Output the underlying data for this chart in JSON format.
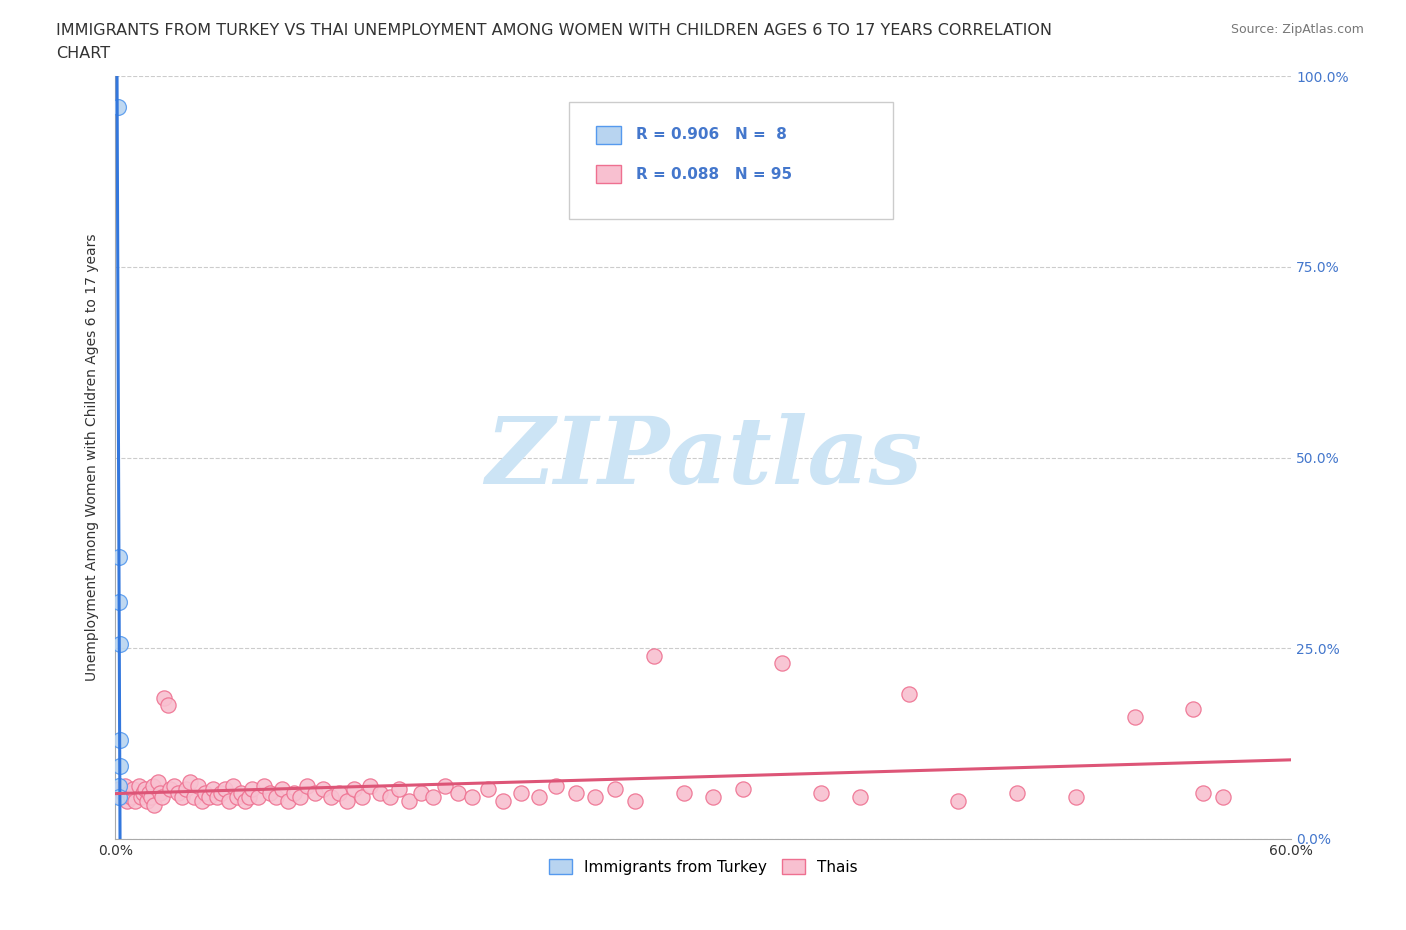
{
  "title_line1": "IMMIGRANTS FROM TURKEY VS THAI UNEMPLOYMENT AMONG WOMEN WITH CHILDREN AGES 6 TO 17 YEARS CORRELATION",
  "title_line2": "CHART",
  "source": "Source: ZipAtlas.com",
  "ylabel": "Unemployment Among Women with Children Ages 6 to 17 years",
  "xlim": [
    0.0,
    0.6
  ],
  "ylim": [
    0.0,
    1.0
  ],
  "xticks": [
    0.0,
    0.6
  ],
  "xticklabels": [
    "0.0%",
    "60.0%"
  ],
  "yticks": [
    0.0,
    0.25,
    0.5,
    0.75,
    1.0
  ],
  "right_yticklabels": [
    "0.0%",
    "25.0%",
    "50.0%",
    "75.0%",
    "100.0%"
  ],
  "blue_R": 0.906,
  "blue_N": 8,
  "pink_R": 0.088,
  "pink_N": 95,
  "legend_label_blue": "Immigrants from Turkey",
  "legend_label_pink": "Thais",
  "blue_scatter_color": "#b8d4f0",
  "blue_edge_color": "#5599ee",
  "pink_scatter_color": "#f8c0d0",
  "pink_edge_color": "#ee7090",
  "blue_line_color": "#3377dd",
  "pink_line_color": "#dd5577",
  "blue_scatter_x": [
    0.0015,
    0.0018,
    0.002,
    0.0022,
    0.0025,
    0.0022,
    0.002,
    0.0018
  ],
  "blue_scatter_y": [
    0.96,
    0.37,
    0.31,
    0.255,
    0.13,
    0.095,
    0.07,
    0.055
  ],
  "pink_scatter_x": [
    0.002,
    0.003,
    0.004,
    0.005,
    0.006,
    0.007,
    0.008,
    0.009,
    0.01,
    0.012,
    0.013,
    0.014,
    0.015,
    0.016,
    0.017,
    0.018,
    0.019,
    0.02,
    0.022,
    0.023,
    0.024,
    0.025,
    0.027,
    0.028,
    0.03,
    0.032,
    0.034,
    0.036,
    0.038,
    0.04,
    0.042,
    0.044,
    0.046,
    0.048,
    0.05,
    0.052,
    0.054,
    0.056,
    0.058,
    0.06,
    0.062,
    0.064,
    0.066,
    0.068,
    0.07,
    0.073,
    0.076,
    0.079,
    0.082,
    0.085,
    0.088,
    0.091,
    0.094,
    0.098,
    0.102,
    0.106,
    0.11,
    0.114,
    0.118,
    0.122,
    0.126,
    0.13,
    0.135,
    0.14,
    0.145,
    0.15,
    0.156,
    0.162,
    0.168,
    0.175,
    0.182,
    0.19,
    0.198,
    0.207,
    0.216,
    0.225,
    0.235,
    0.245,
    0.255,
    0.265,
    0.275,
    0.29,
    0.305,
    0.32,
    0.34,
    0.36,
    0.38,
    0.405,
    0.43,
    0.46,
    0.49,
    0.52,
    0.55,
    0.555,
    0.565
  ],
  "pink_scatter_y": [
    0.065,
    0.055,
    0.06,
    0.07,
    0.05,
    0.06,
    0.055,
    0.065,
    0.05,
    0.07,
    0.055,
    0.06,
    0.065,
    0.05,
    0.06,
    0.055,
    0.07,
    0.045,
    0.075,
    0.06,
    0.055,
    0.185,
    0.175,
    0.065,
    0.07,
    0.06,
    0.055,
    0.065,
    0.075,
    0.055,
    0.07,
    0.05,
    0.06,
    0.055,
    0.065,
    0.055,
    0.06,
    0.065,
    0.05,
    0.07,
    0.055,
    0.06,
    0.05,
    0.055,
    0.065,
    0.055,
    0.07,
    0.06,
    0.055,
    0.065,
    0.05,
    0.06,
    0.055,
    0.07,
    0.06,
    0.065,
    0.055,
    0.06,
    0.05,
    0.065,
    0.055,
    0.07,
    0.06,
    0.055,
    0.065,
    0.05,
    0.06,
    0.055,
    0.07,
    0.06,
    0.055,
    0.065,
    0.05,
    0.06,
    0.055,
    0.07,
    0.06,
    0.055,
    0.065,
    0.05,
    0.24,
    0.06,
    0.055,
    0.065,
    0.23,
    0.06,
    0.055,
    0.19,
    0.05,
    0.06,
    0.055,
    0.16,
    0.17,
    0.06,
    0.055
  ],
  "background_color": "#ffffff",
  "grid_color": "#cccccc",
  "title_fontsize": 11.5,
  "label_fontsize": 10,
  "tick_fontsize": 10,
  "right_tick_color": "#4477cc",
  "legend_fontsize": 11,
  "watermark_text": "ZIPatlas",
  "watermark_color": "#cce4f5",
  "watermark_fontsize": 68
}
